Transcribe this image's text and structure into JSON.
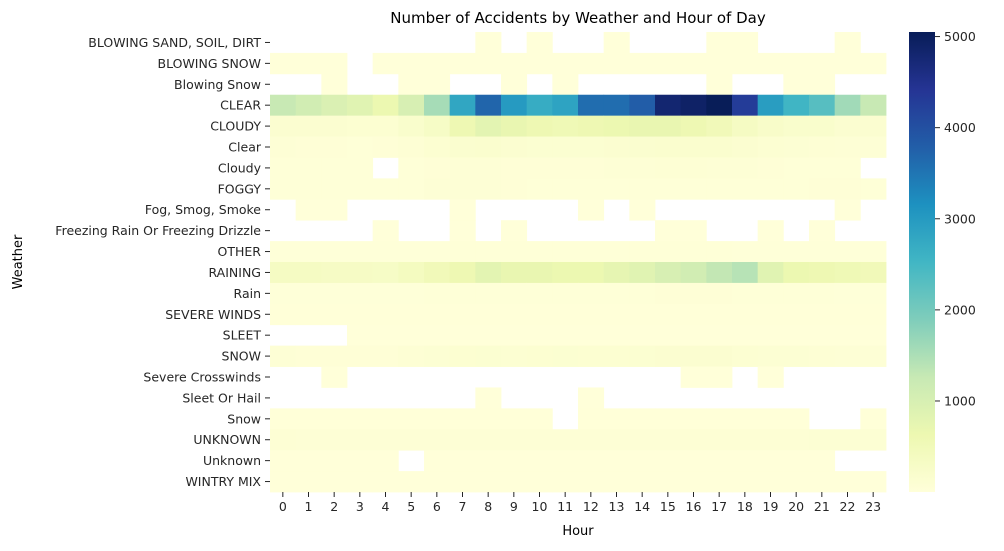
{
  "chart_data": {
    "type": "heatmap",
    "title": "Number of Accidents by Weather and Hour of Day",
    "xlabel": "Hour",
    "ylabel": "Weather",
    "x": [
      "0",
      "1",
      "2",
      "3",
      "4",
      "5",
      "6",
      "7",
      "8",
      "9",
      "10",
      "11",
      "12",
      "13",
      "14",
      "15",
      "16",
      "17",
      "18",
      "19",
      "20",
      "21",
      "22",
      "23"
    ],
    "y": [
      "BLOWING SAND, SOIL, DIRT",
      "BLOWING SNOW",
      "Blowing Snow",
      "CLEAR",
      "CLOUDY",
      "Clear",
      "Cloudy",
      "FOGGY",
      "Fog, Smog, Smoke",
      "Freezing Rain Or Freezing Drizzle",
      "OTHER",
      "RAINING",
      "Rain",
      "SEVERE WINDS",
      "SLEET",
      "SNOW",
      "Severe Crosswinds",
      "Sleet Or Hail",
      "Snow",
      "UNKNOWN",
      "Unknown",
      "WINTRY MIX"
    ],
    "values": [
      [
        null,
        null,
        null,
        null,
        null,
        null,
        null,
        null,
        1,
        null,
        1,
        null,
        null,
        1,
        null,
        null,
        null,
        1,
        1,
        null,
        null,
        null,
        1,
        null
      ],
      [
        5,
        5,
        5,
        null,
        5,
        5,
        5,
        5,
        5,
        5,
        5,
        5,
        5,
        5,
        5,
        5,
        5,
        5,
        5,
        5,
        5,
        5,
        5,
        5
      ],
      [
        null,
        null,
        1,
        null,
        null,
        1,
        1,
        null,
        null,
        1,
        null,
        1,
        null,
        null,
        null,
        null,
        null,
        1,
        null,
        null,
        1,
        1,
        null,
        null
      ],
      [
        1250,
        1100,
        950,
        850,
        650,
        1000,
        1550,
        2800,
        3700,
        3000,
        2700,
        2850,
        3600,
        3600,
        3800,
        4800,
        4900,
        5050,
        4300,
        2950,
        2550,
        2300,
        1600,
        1250
      ],
      [
        150,
        150,
        150,
        120,
        120,
        200,
        300,
        600,
        800,
        700,
        600,
        550,
        600,
        650,
        700,
        700,
        600,
        500,
        350,
        250,
        200,
        200,
        150,
        150
      ],
      [
        60,
        50,
        50,
        40,
        50,
        80,
        120,
        160,
        180,
        150,
        130,
        130,
        130,
        150,
        160,
        180,
        180,
        170,
        150,
        110,
        90,
        80,
        60,
        60
      ],
      [
        30,
        30,
        30,
        30,
        null,
        30,
        50,
        60,
        60,
        50,
        50,
        50,
        50,
        60,
        70,
        80,
        80,
        60,
        60,
        50,
        40,
        30,
        30,
        null
      ],
      [
        40,
        30,
        30,
        30,
        30,
        40,
        60,
        70,
        60,
        50,
        40,
        40,
        40,
        40,
        40,
        40,
        40,
        40,
        40,
        40,
        40,
        50,
        50,
        40
      ],
      [
        null,
        1,
        1,
        null,
        null,
        null,
        null,
        1,
        null,
        null,
        null,
        null,
        1,
        null,
        1,
        null,
        null,
        null,
        null,
        null,
        null,
        null,
        1,
        null
      ],
      [
        null,
        null,
        null,
        null,
        1,
        null,
        null,
        1,
        null,
        1,
        null,
        null,
        null,
        null,
        null,
        1,
        1,
        null,
        null,
        1,
        null,
        1,
        null,
        null
      ],
      [
        20,
        20,
        20,
        20,
        20,
        20,
        20,
        30,
        30,
        30,
        30,
        30,
        30,
        30,
        30,
        30,
        30,
        30,
        20,
        20,
        20,
        20,
        20,
        20
      ],
      [
        350,
        350,
        320,
        320,
        300,
        400,
        500,
        600,
        800,
        700,
        700,
        650,
        650,
        750,
        850,
        1000,
        1100,
        1300,
        1400,
        850,
        650,
        600,
        550,
        500
      ],
      [
        20,
        20,
        20,
        20,
        20,
        20,
        30,
        40,
        40,
        40,
        40,
        40,
        40,
        40,
        40,
        50,
        50,
        50,
        40,
        30,
        30,
        30,
        20,
        20
      ],
      [
        10,
        10,
        10,
        10,
        10,
        10,
        10,
        10,
        10,
        10,
        10,
        10,
        10,
        10,
        10,
        10,
        10,
        10,
        10,
        10,
        10,
        10,
        10,
        10
      ],
      [
        null,
        null,
        null,
        5,
        5,
        5,
        5,
        5,
        5,
        5,
        5,
        5,
        5,
        5,
        5,
        5,
        5,
        5,
        5,
        5,
        5,
        5,
        5,
        5
      ],
      [
        60,
        50,
        50,
        50,
        50,
        80,
        100,
        120,
        130,
        110,
        120,
        130,
        120,
        120,
        130,
        140,
        140,
        140,
        110,
        100,
        90,
        80,
        60,
        60
      ],
      [
        null,
        null,
        1,
        null,
        null,
        null,
        null,
        null,
        null,
        null,
        null,
        null,
        null,
        null,
        null,
        null,
        1,
        1,
        null,
        1,
        null,
        null,
        null,
        null
      ],
      [
        null,
        null,
        null,
        null,
        null,
        null,
        null,
        null,
        1,
        null,
        null,
        null,
        1,
        null,
        null,
        null,
        null,
        null,
        null,
        null,
        null,
        null,
        null,
        null
      ],
      [
        10,
        10,
        10,
        10,
        10,
        10,
        10,
        10,
        10,
        10,
        10,
        null,
        10,
        10,
        10,
        10,
        10,
        10,
        10,
        10,
        10,
        null,
        null,
        10
      ],
      [
        80,
        70,
        70,
        60,
        60,
        60,
        60,
        70,
        70,
        70,
        70,
        70,
        70,
        70,
        70,
        70,
        80,
        80,
        80,
        80,
        80,
        100,
        100,
        100
      ],
      [
        5,
        5,
        5,
        5,
        5,
        null,
        5,
        5,
        5,
        5,
        5,
        5,
        5,
        5,
        5,
        5,
        5,
        5,
        5,
        5,
        5,
        5,
        null,
        null
      ],
      [
        5,
        5,
        5,
        5,
        5,
        5,
        5,
        5,
        5,
        5,
        5,
        5,
        5,
        5,
        5,
        5,
        5,
        5,
        5,
        5,
        5,
        5,
        5,
        5
      ]
    ],
    "vmin": 1,
    "vmax": 5050,
    "colormap": "YlGnBu",
    "colorbar_ticks": [
      1000,
      2000,
      3000,
      4000,
      5000
    ],
    "colorbar_tick_labels": [
      "1000",
      "2000",
      "3000",
      "4000",
      "5000"
    ]
  }
}
